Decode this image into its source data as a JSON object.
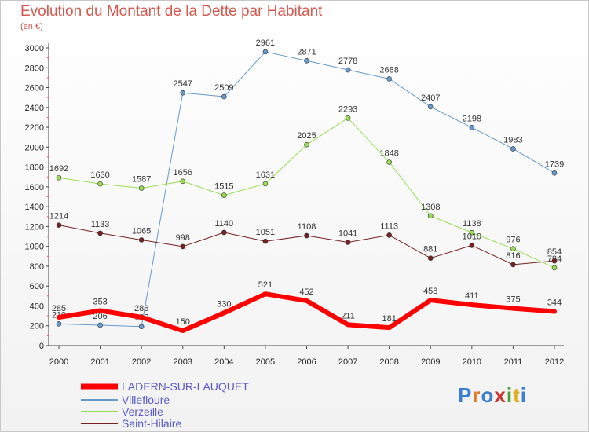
{
  "chart_data": {
    "type": "line",
    "title": "Evolution du Montant de la Dette par Habitant",
    "subtitle": "(en €)",
    "x": [
      "2000",
      "2001",
      "2002",
      "2003",
      "2004",
      "2005",
      "2006",
      "2007",
      "2008",
      "2009",
      "2010",
      "2011",
      "2012"
    ],
    "ylim": [
      0,
      3000
    ],
    "yticks": [
      0,
      200,
      400,
      600,
      800,
      1000,
      1200,
      1400,
      1600,
      1800,
      2000,
      2200,
      2400,
      2600,
      2800,
      3000
    ],
    "grid": false,
    "legend_position": "bottom-left",
    "series": [
      {
        "name": "LADERN-SUR-LAUQUET",
        "color": "#ff0000",
        "values": [
          285,
          353,
          286,
          150,
          330,
          521,
          452,
          211,
          181,
          458,
          411,
          375,
          344
        ],
        "labels": [
          "285",
          "353",
          "286",
          "150",
          "330",
          "521",
          "452",
          "211",
          "181",
          "458",
          "411",
          "375",
          "344"
        ]
      },
      {
        "name": "Villefloure",
        "color": "#6699cc",
        "values": [
          219,
          206,
          192,
          2547,
          2509,
          2961,
          2871,
          2778,
          2688,
          2407,
          2198,
          1983,
          1739
        ],
        "labels": [
          "219",
          "206",
          "192",
          "2547",
          "2509",
          "2961",
          "2871",
          "2778",
          "2688",
          "2407",
          "2198",
          "1983",
          "1739"
        ]
      },
      {
        "name": "Verzeille",
        "color": "#99dd55",
        "values": [
          1692,
          1630,
          1587,
          1656,
          1515,
          1631,
          2025,
          2293,
          1848,
          1308,
          1138,
          976,
          784
        ],
        "labels": [
          "1692",
          "1630",
          "1587",
          "1656",
          "1515",
          "1631",
          "2025",
          "2293",
          "1848",
          "1308",
          "1138",
          "976",
          "784"
        ]
      },
      {
        "name": "Saint-Hilaire",
        "color": "#772222",
        "values": [
          1214,
          1133,
          1065,
          998,
          1140,
          1051,
          1108,
          1041,
          1113,
          881,
          1010,
          816,
          854
        ],
        "labels": [
          "1214",
          "1133",
          "1065",
          "998",
          "1140",
          "1051",
          "1108",
          "1041",
          "1113",
          "881",
          "1010",
          "816",
          "854"
        ]
      }
    ]
  },
  "logo": {
    "text": "Proxiti"
  }
}
